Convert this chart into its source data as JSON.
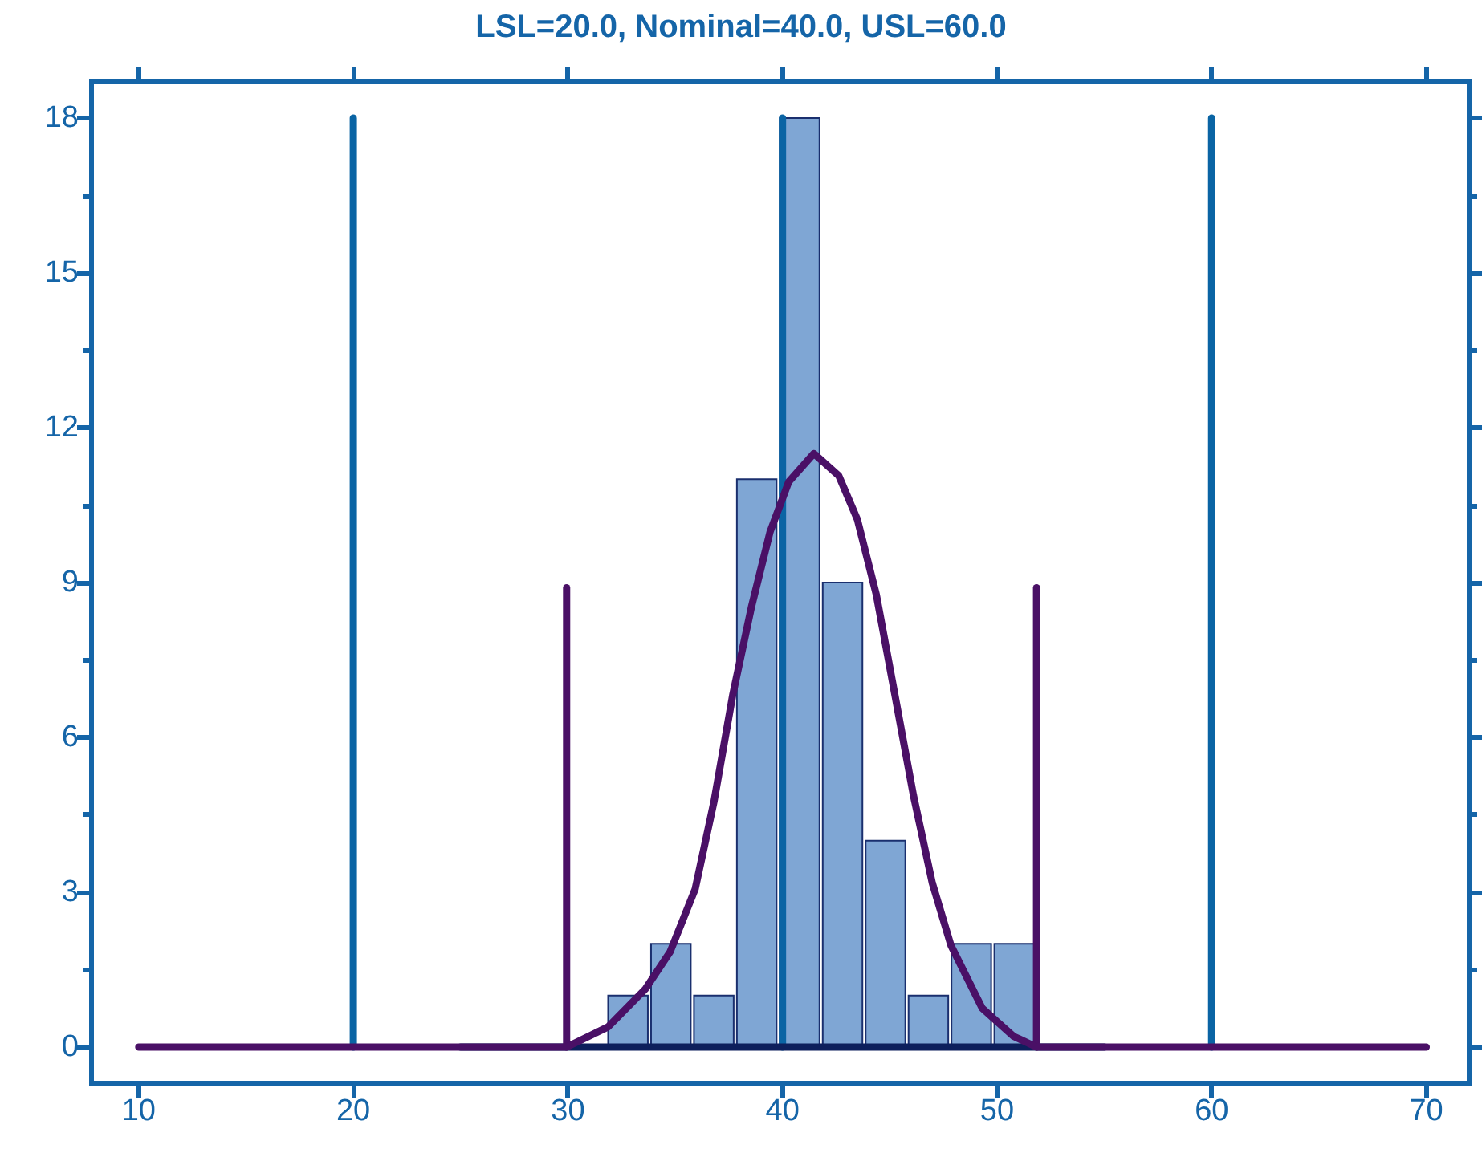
{
  "chart_data": {
    "type": "histogram",
    "title": "LSL=20.0, Nominal=40.0, USL=60.0",
    "bins": [
      31.8,
      33.8,
      35.8,
      37.8,
      39.8,
      41.8,
      43.8,
      45.8,
      47.8,
      49.8,
      51.8
    ],
    "values": [
      1,
      2,
      1,
      11,
      18,
      9,
      4,
      1,
      2,
      2
    ],
    "color": "#7fa6d4",
    "xlim": [
      7.8,
      72
    ],
    "xticks": [
      10,
      20,
      30,
      40,
      50,
      60,
      70
    ],
    "ylim": [
      -0.7,
      18.7
    ],
    "yticks": [
      0,
      3,
      6,
      9,
      12,
      15,
      18
    ],
    "series": [
      {
        "type": "line",
        "color": "#0a64a4",
        "x": [
          20,
          20
        ],
        "values": [
          0,
          18
        ]
      },
      {
        "type": "line",
        "color": "#0a64a4",
        "x": [
          40,
          40
        ],
        "values": [
          0,
          18
        ]
      },
      {
        "type": "line",
        "color": "#0a64a4",
        "x": [
          60,
          60
        ],
        "values": [
          0,
          18
        ]
      },
      {
        "type": "line",
        "color": "#0d1f5c",
        "x": [
          25,
          55
        ],
        "values": [
          0,
          0
        ]
      },
      {
        "type": "line",
        "color": "#4a1066",
        "x": [
          29.94,
          29.94
        ],
        "values": [
          0,
          8.9
        ]
      },
      {
        "type": "line",
        "color": "#4a1066",
        "x": [
          51.84,
          51.84
        ],
        "values": [
          0,
          8.9
        ]
      },
      {
        "type": "line",
        "color": "#4a1066",
        "x": [
          10,
          29.94,
          31.87,
          33.6,
          34.77,
          35.93,
          36.81,
          37.68,
          38.55,
          39.42,
          40.29,
          41.46,
          42.62,
          43.49,
          44.37,
          45.24,
          46.1,
          46.98,
          47.85,
          49.31,
          50.76,
          51.84,
          70
        ],
        "values": [
          0,
          0,
          0.39,
          1.12,
          1.85,
          3.06,
          4.76,
          6.82,
          8.52,
          9.98,
          10.95,
          11.5,
          11.07,
          10.22,
          8.77,
          6.82,
          4.88,
          3.18,
          1.97,
          0.75,
          0.21,
          0,
          0
        ]
      }
    ]
  }
}
